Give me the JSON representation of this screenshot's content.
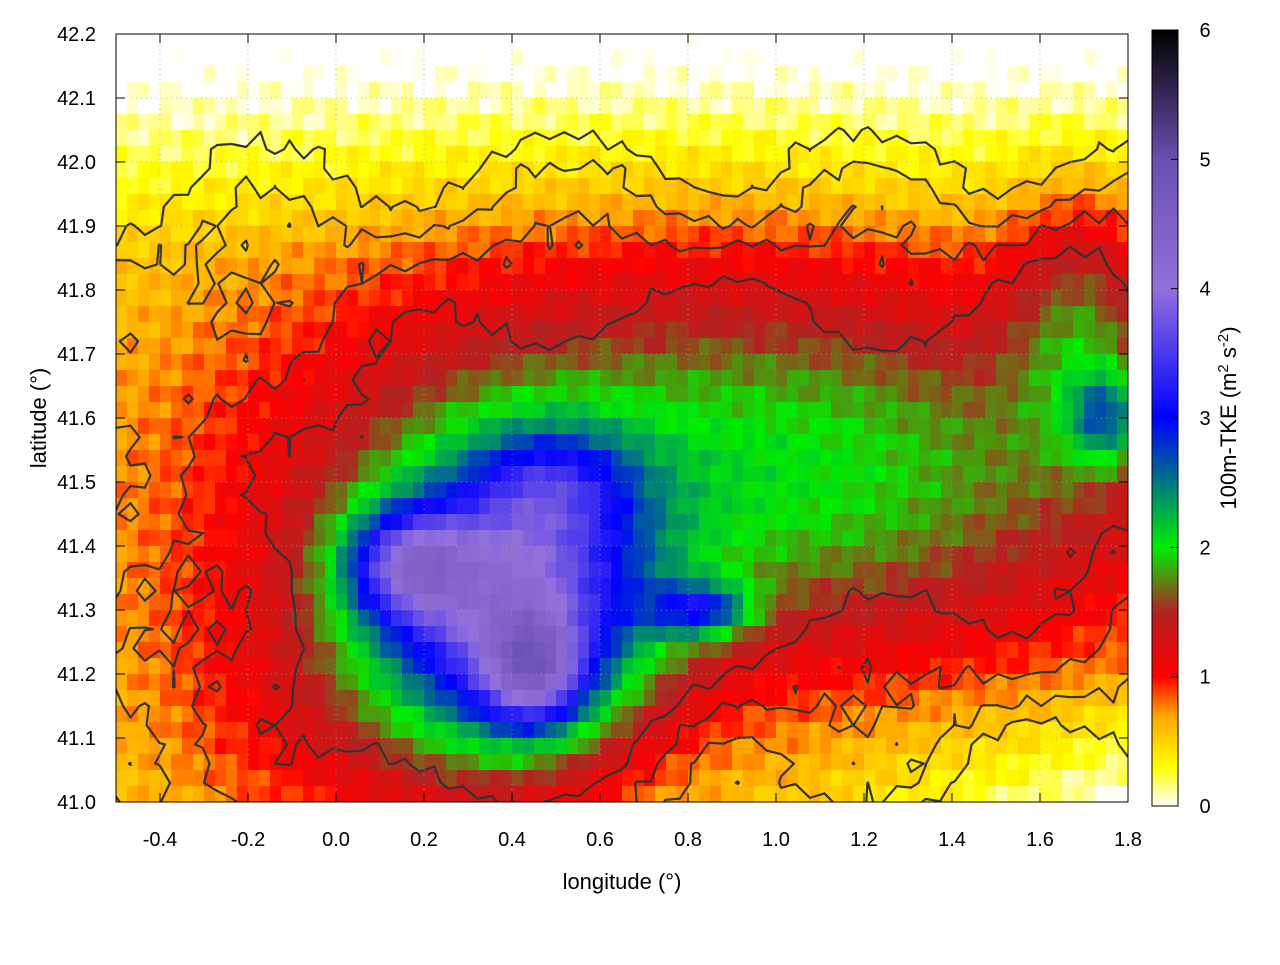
{
  "chart_data": {
    "type": "heatmap",
    "title": "",
    "xlabel": "longitude (°)",
    "ylabel": "latitude (°)",
    "colorbar_label_parts": {
      "pre": "100m-TKE (m",
      "sup1": "2",
      "mid": " s",
      "sup2": "-2",
      "post": ")"
    },
    "xlim": [
      -0.5,
      1.8
    ],
    "ylim": [
      41.0,
      42.2
    ],
    "zlim": [
      0,
      6
    ],
    "x_ticks": [
      -0.4,
      -0.2,
      0.0,
      0.2,
      0.4,
      0.6,
      0.8,
      1.0,
      1.2,
      1.4,
      1.6,
      1.8
    ],
    "x_tick_labels": [
      "-0.4",
      "-0.2",
      "0.0",
      "0.2",
      "0.4",
      "0.6",
      "0.8",
      "1.0",
      "1.2",
      "1.4",
      "1.6",
      "1.8"
    ],
    "y_ticks": [
      41.0,
      41.1,
      41.2,
      41.3,
      41.4,
      41.5,
      41.6,
      41.7,
      41.8,
      41.9,
      42.0,
      42.1,
      42.2
    ],
    "y_tick_labels": [
      "41.0",
      "41.1",
      "41.2",
      "41.3",
      "41.4",
      "41.5",
      "41.6",
      "41.7",
      "41.8",
      "41.9",
      "42.0",
      "42.1",
      "42.2"
    ],
    "z_ticks": [
      0,
      1,
      2,
      3,
      4,
      5,
      6
    ],
    "z_tick_labels": [
      "0",
      "1",
      "2",
      "3",
      "4",
      "5",
      "6"
    ],
    "colormap": [
      {
        "value": 0.0,
        "color": "#ffffff"
      },
      {
        "value": 0.3,
        "color": "#ffff00"
      },
      {
        "value": 0.7,
        "color": "#ffa500"
      },
      {
        "value": 1.0,
        "color": "#ff0000"
      },
      {
        "value": 1.5,
        "color": "#b22222"
      },
      {
        "value": 2.0,
        "color": "#00ee00"
      },
      {
        "value": 3.0,
        "color": "#0000ff"
      },
      {
        "value": 4.0,
        "color": "#9370db"
      },
      {
        "value": 5.0,
        "color": "#6a4fb0"
      },
      {
        "value": 6.0,
        "color": "#000000"
      }
    ],
    "grid": true,
    "contours": true,
    "tke_centers": [
      {
        "lon": 0.4,
        "lat": 41.3,
        "tke": 2.6,
        "spread_lon": 0.22,
        "spread_lat": 0.16
      },
      {
        "lon": 0.16,
        "lat": 41.37,
        "tke": 1.6,
        "spread_lon": 0.1,
        "spread_lat": 0.06
      },
      {
        "lon": 0.45,
        "lat": 41.2,
        "tke": 1.5,
        "spread_lon": 0.08,
        "spread_lat": 0.06
      },
      {
        "lon": 0.83,
        "lat": 41.3,
        "tke": 1.3,
        "spread_lon": 0.08,
        "spread_lat": 0.03
      },
      {
        "lon": 0.5,
        "lat": 41.5,
        "tke": 0.7,
        "spread_lon": 0.12,
        "spread_lat": 0.06
      },
      {
        "lon": 0.6,
        "lat": 41.55,
        "tke": 1.0,
        "spread_lon": 0.7,
        "spread_lat": 0.25
      },
      {
        "lon": 1.3,
        "lat": 41.5,
        "tke": 0.9,
        "spread_lon": 0.6,
        "spread_lat": 0.22
      },
      {
        "lon": 1.7,
        "lat": 41.75,
        "tke": 0.8,
        "spread_lon": 0.12,
        "spread_lat": 0.15
      },
      {
        "lon": 1.75,
        "lat": 41.6,
        "tke": 1.0,
        "spread_lon": 0.06,
        "spread_lat": 0.05
      },
      {
        "lon": 0.05,
        "lat": 41.15,
        "tke": 0.6,
        "spread_lon": 0.35,
        "spread_lat": 0.2
      }
    ],
    "tke_background": 0.4
  }
}
